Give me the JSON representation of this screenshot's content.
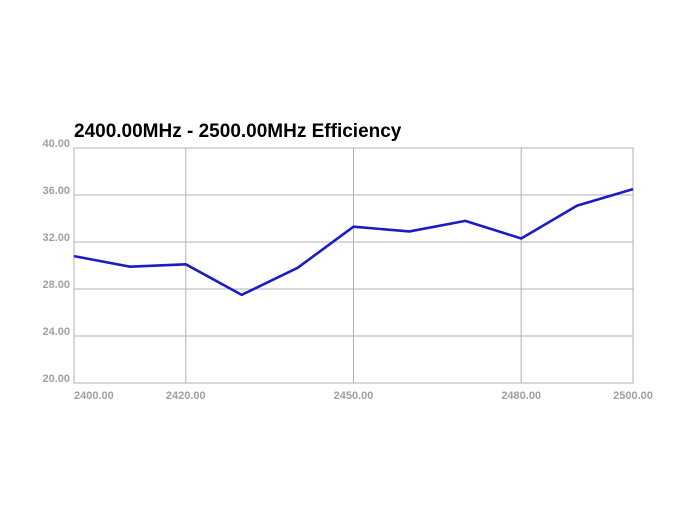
{
  "chart_data": {
    "type": "line",
    "title": "2400.00MHz - 2500.00MHz Efficiency",
    "x": [
      2400,
      2410,
      2420,
      2430,
      2440,
      2450,
      2460,
      2470,
      2480,
      2490,
      2500
    ],
    "series": [
      {
        "color": "#1c1cc4",
        "values": [
          30.8,
          29.9,
          30.1,
          27.5,
          29.8,
          33.3,
          32.9,
          33.8,
          32.3,
          35.1,
          36.5
        ]
      }
    ],
    "xlim": [
      2400,
      2500
    ],
    "xticks": [
      {
        "value": 2400,
        "label": "2400.00"
      },
      {
        "value": 2420,
        "label": "2420.00"
      },
      {
        "value": 2450,
        "label": "2450.00"
      },
      {
        "value": 2480,
        "label": "2480.00"
      },
      {
        "value": 2500,
        "label": "2500.00"
      }
    ],
    "ylim": [
      20,
      40
    ],
    "yticks": [
      {
        "value": 20,
        "label": "20.00"
      },
      {
        "value": 24,
        "label": "24.00"
      },
      {
        "value": 28,
        "label": "28.00"
      },
      {
        "value": 32,
        "label": "32.00"
      },
      {
        "value": 36,
        "label": "36.00"
      },
      {
        "value": 40,
        "label": "40.00"
      }
    ],
    "grid": true
  }
}
